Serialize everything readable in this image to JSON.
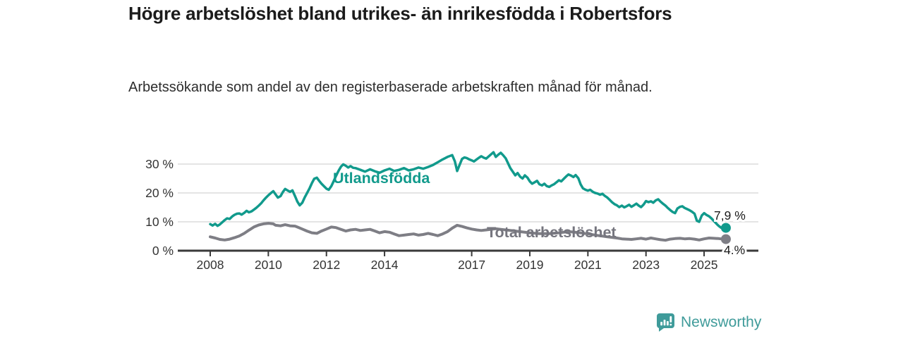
{
  "header": {
    "title": "Högre arbetslöshet bland utrikes- än inrikesfödda i Robertsfors",
    "subtitle": "Arbetssökande som andel av den registerbaserade arbetskraften månad för månad."
  },
  "footer": {
    "brand": "Newsworthy",
    "logo_icon": "bar-chart-speech-bubble-icon",
    "brand_color": "#3f9b9a"
  },
  "chart_data": {
    "type": "line",
    "title": "Högre arbetslöshet bland utrikes- än inrikesfödda i Robertsfors",
    "subtitle": "Arbetssökande som andel av den registerbaserade arbetskraften månad för månad.",
    "xlabel": "",
    "ylabel": "",
    "unit": "%",
    "grid": "horizontal",
    "legend_position": "inline-labels",
    "xlim": [
      2007.9,
      2026.2
    ],
    "ylim": [
      0,
      35
    ],
    "x_ticks": [
      2008,
      2010,
      2012,
      2014,
      2017,
      2019,
      2021,
      2023,
      2025
    ],
    "x_tick_labels": [
      "2008",
      "2010",
      "2012",
      "2014",
      "2017",
      "2019",
      "2021",
      "2023",
      "2025"
    ],
    "y_ticks": [
      0,
      10,
      20,
      30
    ],
    "y_tick_labels": [
      "0 %",
      "10 %",
      "20 %",
      "30 %"
    ],
    "colors": {
      "grid": "#dcdcdc",
      "axis": "#3a3a3a",
      "tick_text": "#333333",
      "value_label_text": "#1b1b1b"
    },
    "series": [
      {
        "name": "Total arbetslöshet",
        "color": "#7e7e85",
        "end_label": "4.%",
        "end_dot": true,
        "points": [
          [
            2008.0,
            4.8
          ],
          [
            2008.17,
            4.4
          ],
          [
            2008.33,
            3.9
          ],
          [
            2008.5,
            3.7
          ],
          [
            2008.67,
            4.0
          ],
          [
            2008.83,
            4.5
          ],
          [
            2009.0,
            5.1
          ],
          [
            2009.17,
            6.0
          ],
          [
            2009.33,
            7.1
          ],
          [
            2009.5,
            8.2
          ],
          [
            2009.67,
            8.9
          ],
          [
            2009.83,
            9.3
          ],
          [
            2010.0,
            9.5
          ],
          [
            2010.17,
            9.3
          ],
          [
            2010.25,
            8.8
          ],
          [
            2010.42,
            8.6
          ],
          [
            2010.58,
            9.0
          ],
          [
            2010.75,
            8.6
          ],
          [
            2010.92,
            8.5
          ],
          [
            2011.0,
            8.2
          ],
          [
            2011.17,
            7.5
          ],
          [
            2011.33,
            6.8
          ],
          [
            2011.5,
            6.2
          ],
          [
            2011.67,
            6.0
          ],
          [
            2011.83,
            6.8
          ],
          [
            2012.0,
            7.5
          ],
          [
            2012.17,
            8.2
          ],
          [
            2012.33,
            8.0
          ],
          [
            2012.5,
            7.4
          ],
          [
            2012.67,
            6.8
          ],
          [
            2012.83,
            7.2
          ],
          [
            2013.0,
            7.4
          ],
          [
            2013.17,
            7.0
          ],
          [
            2013.33,
            7.2
          ],
          [
            2013.5,
            7.4
          ],
          [
            2013.67,
            6.8
          ],
          [
            2013.83,
            6.2
          ],
          [
            2014.0,
            6.6
          ],
          [
            2014.17,
            6.4
          ],
          [
            2014.33,
            5.8
          ],
          [
            2014.5,
            5.2
          ],
          [
            2014.67,
            5.4
          ],
          [
            2014.83,
            5.6
          ],
          [
            2015.0,
            5.8
          ],
          [
            2015.17,
            5.4
          ],
          [
            2015.33,
            5.6
          ],
          [
            2015.5,
            6.0
          ],
          [
            2015.67,
            5.6
          ],
          [
            2015.83,
            5.2
          ],
          [
            2016.0,
            5.8
          ],
          [
            2016.17,
            6.6
          ],
          [
            2016.33,
            7.8
          ],
          [
            2016.5,
            8.8
          ],
          [
            2016.67,
            8.4
          ],
          [
            2016.83,
            7.9
          ],
          [
            2017.0,
            7.5
          ],
          [
            2017.17,
            7.2
          ],
          [
            2017.33,
            7.0
          ],
          [
            2017.5,
            7.2
          ],
          [
            2017.67,
            7.4
          ],
          [
            2017.83,
            7.6
          ],
          [
            2018.0,
            7.4
          ],
          [
            2018.25,
            7.1
          ],
          [
            2018.5,
            6.8
          ],
          [
            2018.75,
            6.5
          ],
          [
            2019.0,
            6.2
          ],
          [
            2019.33,
            5.9
          ],
          [
            2019.67,
            5.9
          ],
          [
            2020.0,
            6.2
          ],
          [
            2020.33,
            6.6
          ],
          [
            2020.67,
            6.3
          ],
          [
            2021.0,
            5.8
          ],
          [
            2021.33,
            5.3
          ],
          [
            2021.67,
            4.8
          ],
          [
            2022.0,
            4.4
          ],
          [
            2022.17,
            4.1
          ],
          [
            2022.33,
            4.0
          ],
          [
            2022.5,
            3.9
          ],
          [
            2022.67,
            4.1
          ],
          [
            2022.83,
            4.3
          ],
          [
            2023.0,
            4.0
          ],
          [
            2023.17,
            4.4
          ],
          [
            2023.33,
            4.1
          ],
          [
            2023.5,
            3.8
          ],
          [
            2023.67,
            3.6
          ],
          [
            2023.83,
            4.0
          ],
          [
            2024.0,
            4.2
          ],
          [
            2024.17,
            4.3
          ],
          [
            2024.33,
            4.1
          ],
          [
            2024.5,
            4.2
          ],
          [
            2024.67,
            4.0
          ],
          [
            2024.83,
            3.7
          ],
          [
            2025.0,
            4.1
          ],
          [
            2025.17,
            4.4
          ],
          [
            2025.33,
            4.3
          ],
          [
            2025.5,
            4.2
          ],
          [
            2025.67,
            4.0
          ],
          [
            2025.75,
            4.0
          ]
        ]
      },
      {
        "name": "Utlandsfödda",
        "color": "#119a8c",
        "end_label": "7,9 %",
        "end_dot": true,
        "points": [
          [
            2008.0,
            9.2
          ],
          [
            2008.08,
            8.7
          ],
          [
            2008.17,
            9.3
          ],
          [
            2008.25,
            8.6
          ],
          [
            2008.33,
            9.1
          ],
          [
            2008.42,
            9.9
          ],
          [
            2008.5,
            10.6
          ],
          [
            2008.58,
            11.2
          ],
          [
            2008.67,
            11.0
          ],
          [
            2008.75,
            11.8
          ],
          [
            2008.83,
            12.4
          ],
          [
            2008.92,
            12.8
          ],
          [
            2009.0,
            12.9
          ],
          [
            2009.08,
            12.5
          ],
          [
            2009.17,
            13.1
          ],
          [
            2009.25,
            13.8
          ],
          [
            2009.33,
            13.3
          ],
          [
            2009.42,
            13.6
          ],
          [
            2009.5,
            14.2
          ],
          [
            2009.58,
            14.8
          ],
          [
            2009.67,
            15.6
          ],
          [
            2009.75,
            16.4
          ],
          [
            2009.83,
            17.4
          ],
          [
            2009.92,
            18.4
          ],
          [
            2010.0,
            19.2
          ],
          [
            2010.08,
            19.9
          ],
          [
            2010.17,
            20.6
          ],
          [
            2010.25,
            19.5
          ],
          [
            2010.33,
            18.4
          ],
          [
            2010.42,
            18.9
          ],
          [
            2010.5,
            20.3
          ],
          [
            2010.58,
            21.4
          ],
          [
            2010.67,
            20.8
          ],
          [
            2010.75,
            20.4
          ],
          [
            2010.83,
            20.9
          ],
          [
            2010.92,
            18.9
          ],
          [
            2011.0,
            17.0
          ],
          [
            2011.08,
            15.7
          ],
          [
            2011.17,
            16.6
          ],
          [
            2011.25,
            18.4
          ],
          [
            2011.33,
            19.9
          ],
          [
            2011.42,
            21.6
          ],
          [
            2011.5,
            23.4
          ],
          [
            2011.58,
            24.9
          ],
          [
            2011.67,
            25.3
          ],
          [
            2011.75,
            24.2
          ],
          [
            2011.83,
            23.2
          ],
          [
            2011.92,
            22.3
          ],
          [
            2012.0,
            21.5
          ],
          [
            2012.08,
            21.1
          ],
          [
            2012.17,
            22.4
          ],
          [
            2012.25,
            24.1
          ],
          [
            2012.33,
            25.9
          ],
          [
            2012.42,
            27.7
          ],
          [
            2012.5,
            29.1
          ],
          [
            2012.58,
            29.9
          ],
          [
            2012.67,
            29.4
          ],
          [
            2012.75,
            28.8
          ],
          [
            2012.83,
            29.3
          ],
          [
            2012.92,
            28.7
          ],
          [
            2013.0,
            28.6
          ],
          [
            2013.17,
            28.0
          ],
          [
            2013.33,
            27.4
          ],
          [
            2013.5,
            28.2
          ],
          [
            2013.67,
            27.5
          ],
          [
            2013.83,
            27.0
          ],
          [
            2014.0,
            27.8
          ],
          [
            2014.17,
            28.4
          ],
          [
            2014.33,
            27.6
          ],
          [
            2014.5,
            28.0
          ],
          [
            2014.67,
            28.6
          ],
          [
            2014.83,
            27.8
          ],
          [
            2015.0,
            28.2
          ],
          [
            2015.17,
            28.8
          ],
          [
            2015.33,
            28.4
          ],
          [
            2015.5,
            29.0
          ],
          [
            2015.67,
            29.7
          ],
          [
            2015.83,
            30.6
          ],
          [
            2016.0,
            31.6
          ],
          [
            2016.17,
            32.5
          ],
          [
            2016.33,
            33.1
          ],
          [
            2016.42,
            31.0
          ],
          [
            2016.5,
            27.6
          ],
          [
            2016.58,
            29.6
          ],
          [
            2016.67,
            31.8
          ],
          [
            2016.75,
            32.3
          ],
          [
            2016.83,
            32.1
          ],
          [
            2016.92,
            31.6
          ],
          [
            2017.0,
            31.3
          ],
          [
            2017.08,
            30.9
          ],
          [
            2017.17,
            31.6
          ],
          [
            2017.25,
            32.2
          ],
          [
            2017.33,
            32.7
          ],
          [
            2017.42,
            32.2
          ],
          [
            2017.5,
            31.9
          ],
          [
            2017.58,
            32.6
          ],
          [
            2017.67,
            33.4
          ],
          [
            2017.75,
            34.1
          ],
          [
            2017.83,
            32.5
          ],
          [
            2017.92,
            33.3
          ],
          [
            2018.0,
            33.9
          ],
          [
            2018.08,
            33.1
          ],
          [
            2018.17,
            32.0
          ],
          [
            2018.25,
            30.3
          ],
          [
            2018.33,
            28.6
          ],
          [
            2018.42,
            27.3
          ],
          [
            2018.5,
            26.1
          ],
          [
            2018.58,
            26.9
          ],
          [
            2018.67,
            25.6
          ],
          [
            2018.75,
            25.0
          ],
          [
            2018.83,
            26.1
          ],
          [
            2018.92,
            25.3
          ],
          [
            2019.0,
            24.0
          ],
          [
            2019.08,
            23.2
          ],
          [
            2019.17,
            23.7
          ],
          [
            2019.25,
            24.2
          ],
          [
            2019.33,
            23.0
          ],
          [
            2019.42,
            22.6
          ],
          [
            2019.5,
            23.2
          ],
          [
            2019.58,
            22.4
          ],
          [
            2019.67,
            22.1
          ],
          [
            2019.75,
            22.6
          ],
          [
            2019.83,
            23.0
          ],
          [
            2019.92,
            23.7
          ],
          [
            2020.0,
            24.4
          ],
          [
            2020.08,
            24.0
          ],
          [
            2020.17,
            24.9
          ],
          [
            2020.25,
            25.7
          ],
          [
            2020.33,
            26.4
          ],
          [
            2020.42,
            26.0
          ],
          [
            2020.5,
            25.5
          ],
          [
            2020.58,
            26.2
          ],
          [
            2020.67,
            25.1
          ],
          [
            2020.75,
            23.0
          ],
          [
            2020.83,
            21.6
          ],
          [
            2020.92,
            21.1
          ],
          [
            2021.0,
            20.8
          ],
          [
            2021.08,
            21.1
          ],
          [
            2021.17,
            20.4
          ],
          [
            2021.25,
            20.0
          ],
          [
            2021.33,
            19.8
          ],
          [
            2021.42,
            19.4
          ],
          [
            2021.5,
            19.7
          ],
          [
            2021.58,
            19.0
          ],
          [
            2021.67,
            18.4
          ],
          [
            2021.75,
            17.6
          ],
          [
            2021.83,
            16.8
          ],
          [
            2021.92,
            16.1
          ],
          [
            2022.0,
            15.7
          ],
          [
            2022.08,
            15.1
          ],
          [
            2022.17,
            15.6
          ],
          [
            2022.25,
            15.0
          ],
          [
            2022.33,
            15.4
          ],
          [
            2022.42,
            15.9
          ],
          [
            2022.5,
            15.2
          ],
          [
            2022.58,
            15.7
          ],
          [
            2022.67,
            16.3
          ],
          [
            2022.75,
            15.6
          ],
          [
            2022.83,
            15.1
          ],
          [
            2022.92,
            16.0
          ],
          [
            2023.0,
            17.2
          ],
          [
            2023.08,
            16.8
          ],
          [
            2023.17,
            17.1
          ],
          [
            2023.25,
            16.6
          ],
          [
            2023.33,
            17.4
          ],
          [
            2023.42,
            17.8
          ],
          [
            2023.5,
            17.0
          ],
          [
            2023.58,
            16.3
          ],
          [
            2023.67,
            15.6
          ],
          [
            2023.75,
            14.8
          ],
          [
            2023.83,
            14.1
          ],
          [
            2023.92,
            13.4
          ],
          [
            2024.0,
            13.0
          ],
          [
            2024.08,
            14.6
          ],
          [
            2024.17,
            15.2
          ],
          [
            2024.25,
            15.4
          ],
          [
            2024.33,
            14.8
          ],
          [
            2024.42,
            14.4
          ],
          [
            2024.5,
            14.0
          ],
          [
            2024.58,
            13.5
          ],
          [
            2024.67,
            12.8
          ],
          [
            2024.75,
            10.4
          ],
          [
            2024.83,
            10.0
          ],
          [
            2024.92,
            12.2
          ],
          [
            2025.0,
            13.0
          ],
          [
            2025.08,
            12.4
          ],
          [
            2025.17,
            11.9
          ],
          [
            2025.25,
            11.2
          ],
          [
            2025.33,
            10.4
          ],
          [
            2025.42,
            9.4
          ],
          [
            2025.5,
            8.6
          ],
          [
            2025.58,
            8.0
          ],
          [
            2025.67,
            7.6
          ],
          [
            2025.75,
            7.9
          ]
        ]
      }
    ]
  }
}
